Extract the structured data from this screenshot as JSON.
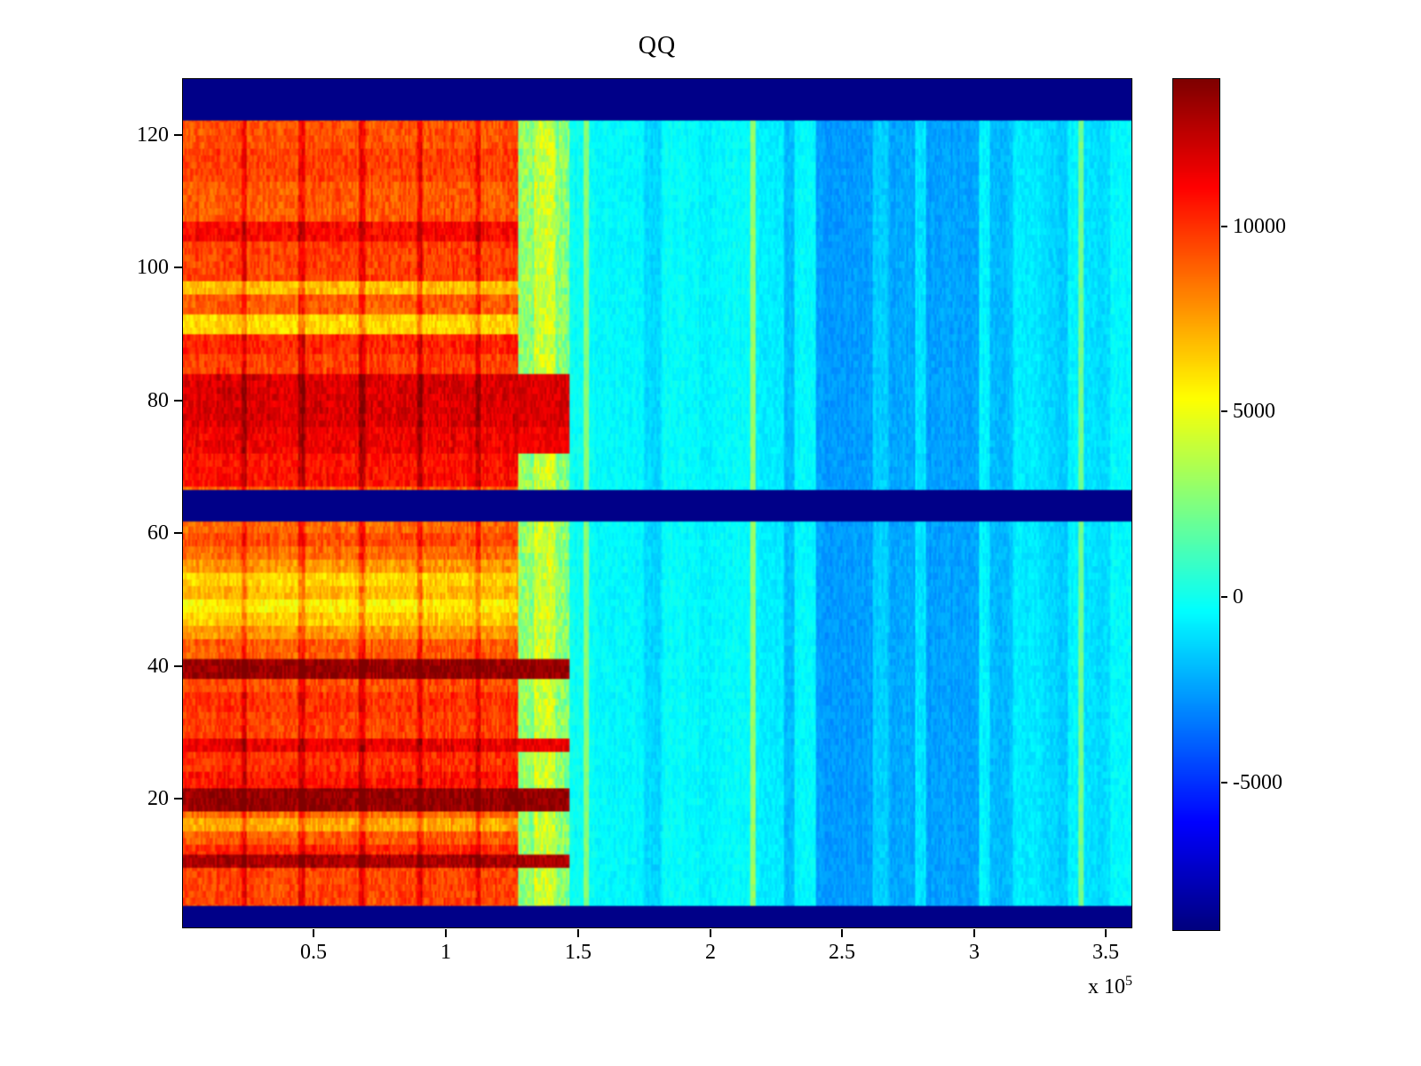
{
  "title": "QQ",
  "axes": {
    "x_tick_labels": [
      "0.5",
      "1",
      "1.5",
      "2",
      "2.5",
      "3",
      "3.5"
    ],
    "y_tick_labels": [
      "20",
      "40",
      "60",
      "80",
      "100",
      "120"
    ],
    "colorbar_tick_labels": [
      "10000",
      "5000",
      "0",
      "-5000"
    ],
    "exponent_prefix": "x 10",
    "exponent": "5"
  },
  "chart_data": {
    "type": "heatmap",
    "title": "QQ",
    "colormap": "jet",
    "xlim": [
      0,
      360000
    ],
    "ylim": [
      0.5,
      128.5
    ],
    "clim": [
      -9000,
      14000
    ],
    "x_tick_values": [
      50000,
      100000,
      150000,
      200000,
      250000,
      300000,
      350000
    ],
    "y_tick_values": [
      20,
      40,
      60,
      80,
      100,
      120
    ],
    "colorbar_tick_values": [
      10000,
      5000,
      0,
      -5000
    ],
    "x_axis_exponent": 5,
    "grid": {
      "cols": 535,
      "rows": 512
    },
    "navy_value": -8800,
    "navy_row_bands": [
      [
        0.5,
        3.8
      ],
      [
        61.8,
        66.6
      ],
      [
        122.3,
        128.5
      ]
    ],
    "warm_region": {
      "x_end": 127000,
      "noise": 900,
      "col_noise": 700,
      "grid_lines_x": [
        23000,
        45000,
        68000,
        90000,
        112000
      ],
      "grid_line_width": 2200,
      "grid_line_boost": 1700,
      "row_segments": [
        [
          0.5,
          4,
          9500
        ],
        [
          4,
          9.5,
          9600
        ],
        [
          9.5,
          11.5,
          13000
        ],
        [
          11.5,
          13,
          10200
        ],
        [
          13,
          15,
          9100
        ],
        [
          15,
          17,
          7300
        ],
        [
          17,
          18,
          8800
        ],
        [
          18,
          21.5,
          13500
        ],
        [
          21.5,
          24,
          10700
        ],
        [
          24,
          27,
          10100
        ],
        [
          27,
          29,
          11500
        ],
        [
          29,
          33,
          9700
        ],
        [
          33,
          36,
          10000
        ],
        [
          36,
          38,
          9400
        ],
        [
          38,
          41,
          13500
        ],
        [
          41,
          44,
          9100
        ],
        [
          44,
          46,
          7700
        ],
        [
          46,
          48,
          6500
        ],
        [
          48,
          50,
          5700
        ],
        [
          50,
          52,
          6900
        ],
        [
          52,
          54,
          6300
        ],
        [
          54,
          56,
          7700
        ],
        [
          56,
          58,
          8700
        ],
        [
          58,
          60,
          9500
        ],
        [
          60,
          62,
          8800
        ],
        [
          62,
          67,
          8900
        ],
        [
          67,
          72,
          10800
        ],
        [
          72,
          76,
          11400
        ],
        [
          76,
          84,
          11900
        ],
        [
          84,
          87,
          9700
        ],
        [
          87,
          90,
          10300
        ],
        [
          90,
          93,
          6300
        ],
        [
          93,
          96,
          9100
        ],
        [
          96,
          98,
          6800
        ],
        [
          98,
          104,
          9700
        ],
        [
          104,
          107,
          11100
        ],
        [
          107,
          113,
          9100
        ],
        [
          113,
          118,
          9700
        ],
        [
          118,
          122.5,
          9300
        ],
        [
          122.5,
          128.5,
          8900
        ]
      ]
    },
    "transition_region": {
      "x0": 127000,
      "x1": 147000,
      "base": 2800,
      "core": {
        "x0": 133000,
        "x1": 141000,
        "base": 4400
      },
      "hot_threshold": 11300,
      "noise": 1300,
      "col_noise": 700
    },
    "cool_region": {
      "base": -500,
      "noise": 450,
      "col_noise": 400,
      "column_segments": [
        [
          147,
          152,
          -200
        ],
        [
          152,
          154,
          2600
        ],
        [
          154,
          160,
          -300
        ],
        [
          160,
          175,
          -450
        ],
        [
          175,
          182,
          -1300
        ],
        [
          182,
          196,
          -350
        ],
        [
          196,
          203,
          -600
        ],
        [
          203,
          215,
          -350
        ],
        [
          215,
          217.5,
          3200
        ],
        [
          217.5,
          228,
          -700
        ],
        [
          228,
          232,
          -1900
        ],
        [
          232,
          240,
          -500
        ],
        [
          240,
          262,
          -2600
        ],
        [
          262,
          268,
          -1400
        ],
        [
          268,
          278,
          -2300
        ],
        [
          278,
          282,
          -900
        ],
        [
          282,
          302,
          -2500
        ],
        [
          302,
          306,
          -600
        ],
        [
          306,
          315,
          -1900
        ],
        [
          315,
          326,
          -800
        ],
        [
          326,
          332,
          -1200
        ],
        [
          332,
          336,
          -1600
        ],
        [
          336,
          340,
          -600
        ],
        [
          340,
          342,
          2200
        ],
        [
          342,
          352,
          -1100
        ],
        [
          352,
          360,
          -500
        ]
      ]
    }
  }
}
